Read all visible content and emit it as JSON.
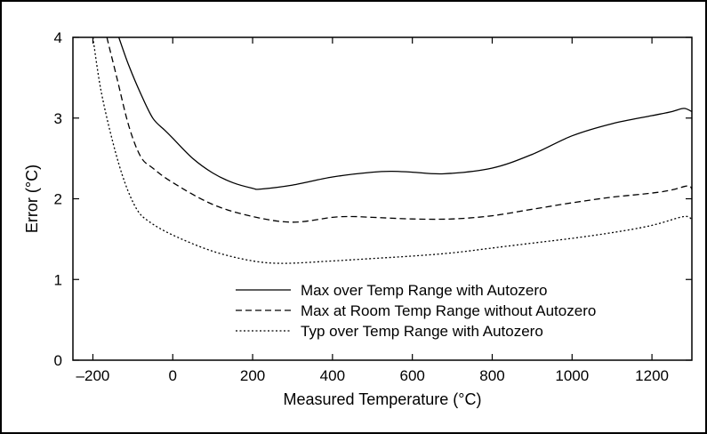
{
  "chart_data": {
    "type": "line",
    "xlabel": "Measured Temperature (°C)",
    "ylabel": "Error (°C)",
    "xlim": [
      -250,
      1300
    ],
    "ylim": [
      0,
      4
    ],
    "xticks": [
      "–200",
      "0",
      "200",
      "400",
      "600",
      "800",
      "1000",
      "1200"
    ],
    "xtick_values": [
      -200,
      0,
      200,
      400,
      600,
      800,
      1000,
      1200
    ],
    "yticks": [
      "0",
      "1",
      "2",
      "3",
      "4"
    ],
    "ytick_values": [
      0,
      1,
      2,
      3,
      4
    ],
    "grid": false,
    "legend_position": "bottom-right",
    "series": [
      {
        "name": "Max over Temp Range with Autozero",
        "style": "solid",
        "x": [
          -135,
          -110,
          -80,
          -50,
          -20,
          0,
          50,
          100,
          150,
          200,
          220,
          300,
          400,
          500,
          550,
          600,
          680,
          800,
          900,
          1000,
          1100,
          1200,
          1250,
          1280,
          1300
        ],
        "y": [
          4.0,
          3.65,
          3.3,
          3.0,
          2.85,
          2.75,
          2.5,
          2.32,
          2.2,
          2.13,
          2.12,
          2.17,
          2.27,
          2.33,
          2.34,
          2.33,
          2.31,
          2.38,
          2.55,
          2.78,
          2.93,
          3.03,
          3.08,
          3.12,
          3.08
        ]
      },
      {
        "name": "Max at Room Temp Range without Autozero",
        "style": "dashed",
        "x": [
          -165,
          -140,
          -110,
          -80,
          -50,
          0,
          100,
          200,
          300,
          400,
          450,
          500,
          600,
          700,
          800,
          900,
          1000,
          1100,
          1200,
          1250,
          1290,
          1300
        ],
        "y": [
          4.0,
          3.5,
          2.9,
          2.52,
          2.38,
          2.2,
          1.93,
          1.78,
          1.71,
          1.77,
          1.78,
          1.77,
          1.75,
          1.75,
          1.79,
          1.87,
          1.95,
          2.02,
          2.07,
          2.11,
          2.16,
          2.12
        ]
      },
      {
        "name": "Typ over Temp Range with Autozero",
        "style": "dotted",
        "x": [
          -200,
          -180,
          -150,
          -120,
          -90,
          -60,
          0,
          100,
          200,
          280,
          400,
          500,
          600,
          700,
          800,
          900,
          1000,
          1100,
          1200,
          1280,
          1300
        ],
        "y": [
          4.0,
          3.35,
          2.7,
          2.2,
          1.87,
          1.72,
          1.55,
          1.35,
          1.23,
          1.2,
          1.23,
          1.26,
          1.29,
          1.33,
          1.39,
          1.45,
          1.51,
          1.58,
          1.67,
          1.78,
          1.74
        ]
      }
    ]
  }
}
